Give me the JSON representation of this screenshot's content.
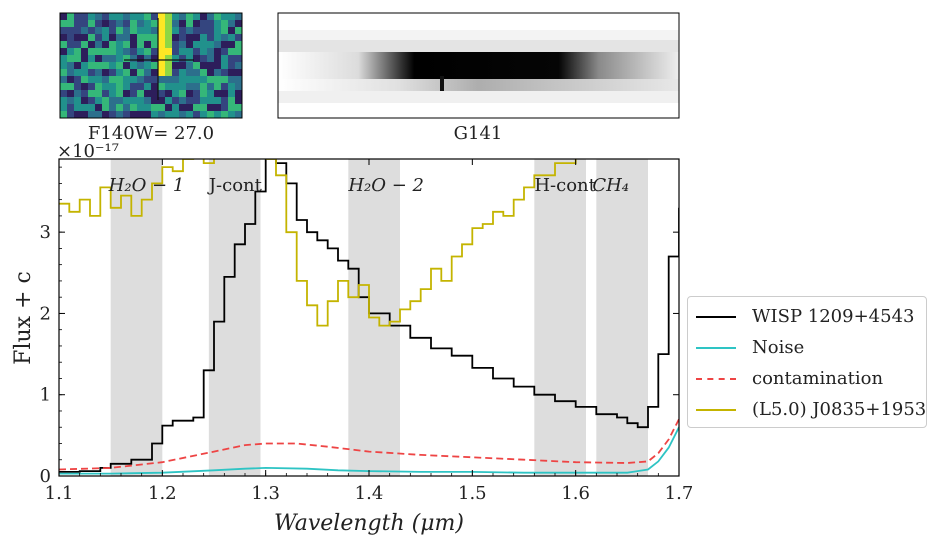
{
  "thumbnails": {
    "direct_label": "F140W= 27.0",
    "grism_label": "G141"
  },
  "chart_data": {
    "type": "line",
    "xlabel": "Wavelength (μm)",
    "ylabel": "Flux + c",
    "y_multiplier": "×10⁻¹⁷",
    "xlim": [
      1.1,
      1.7
    ],
    "ylim": [
      0,
      3.9
    ],
    "x_ticks": [
      "1.1",
      "1.2",
      "1.3",
      "1.4",
      "1.5",
      "1.6",
      "1.7"
    ],
    "y_ticks": [
      "0",
      "1",
      "2",
      "3"
    ],
    "bands": [
      {
        "label": "H₂O − 1",
        "x0": 1.15,
        "x1": 1.2
      },
      {
        "label": "J-cont",
        "x0": 1.245,
        "x1": 1.295
      },
      {
        "label": "H₂O − 2",
        "x0": 1.38,
        "x1": 1.43
      },
      {
        "label": "H-cont",
        "x0": 1.56,
        "x1": 1.61
      },
      {
        "label": "CH₄",
        "x0": 1.62,
        "x1": 1.67
      }
    ],
    "series": [
      {
        "name": "WISP 1209+4543",
        "color": "#000000",
        "style": "step",
        "x": [
          1.1,
          1.12,
          1.14,
          1.15,
          1.17,
          1.19,
          1.2,
          1.21,
          1.23,
          1.24,
          1.25,
          1.26,
          1.27,
          1.28,
          1.29,
          1.3,
          1.31,
          1.32,
          1.33,
          1.34,
          1.35,
          1.36,
          1.37,
          1.38,
          1.39,
          1.4,
          1.42,
          1.44,
          1.46,
          1.48,
          1.5,
          1.52,
          1.54,
          1.56,
          1.58,
          1.6,
          1.62,
          1.64,
          1.65,
          1.66,
          1.67,
          1.68,
          1.69,
          1.7
        ],
        "y": [
          0.05,
          0.06,
          0.1,
          0.15,
          0.2,
          0.4,
          0.62,
          0.68,
          0.72,
          1.3,
          1.9,
          2.45,
          2.85,
          3.1,
          3.5,
          3.92,
          3.85,
          3.6,
          3.15,
          3.0,
          2.9,
          2.8,
          2.65,
          2.55,
          2.2,
          2.0,
          1.85,
          1.7,
          1.57,
          1.48,
          1.33,
          1.2,
          1.1,
          1.0,
          0.92,
          0.85,
          0.76,
          0.72,
          0.65,
          0.6,
          0.85,
          1.5,
          2.7,
          3.3
        ]
      },
      {
        "name": "Noise",
        "color": "#2ec4c4",
        "style": "line",
        "x": [
          1.1,
          1.15,
          1.2,
          1.25,
          1.28,
          1.3,
          1.34,
          1.37,
          1.4,
          1.45,
          1.5,
          1.55,
          1.6,
          1.65,
          1.67,
          1.68,
          1.69,
          1.7
        ],
        "y": [
          0.03,
          0.03,
          0.04,
          0.07,
          0.09,
          0.1,
          0.09,
          0.07,
          0.06,
          0.05,
          0.05,
          0.04,
          0.04,
          0.04,
          0.08,
          0.18,
          0.35,
          0.6
        ]
      },
      {
        "name": "contamination",
        "color": "#ee4444",
        "style": "dashed",
        "x": [
          1.1,
          1.15,
          1.2,
          1.25,
          1.28,
          1.3,
          1.33,
          1.36,
          1.4,
          1.45,
          1.5,
          1.55,
          1.6,
          1.65,
          1.67,
          1.68,
          1.69,
          1.7
        ],
        "y": [
          0.08,
          0.1,
          0.17,
          0.3,
          0.38,
          0.4,
          0.4,
          0.36,
          0.3,
          0.26,
          0.23,
          0.2,
          0.17,
          0.16,
          0.18,
          0.28,
          0.45,
          0.7
        ]
      },
      {
        "name": "(L5.0) J0835+1953",
        "color": "#c4b400",
        "style": "step",
        "x": [
          1.1,
          1.11,
          1.12,
          1.13,
          1.14,
          1.15,
          1.16,
          1.17,
          1.18,
          1.19,
          1.2,
          1.21,
          1.22,
          1.23,
          1.24,
          1.25,
          1.26,
          1.27,
          1.28,
          1.29,
          1.3,
          1.31,
          1.32,
          1.33,
          1.34,
          1.35,
          1.36,
          1.37,
          1.38,
          1.39,
          1.4,
          1.41,
          1.42,
          1.43,
          1.44,
          1.45,
          1.46,
          1.47,
          1.48,
          1.49,
          1.5,
          1.51,
          1.52,
          1.53,
          1.54,
          1.55,
          1.56,
          1.58,
          1.6,
          1.62,
          1.64,
          1.66,
          1.68,
          1.7
        ],
        "y": [
          3.35,
          3.25,
          3.4,
          3.2,
          3.55,
          3.3,
          3.45,
          3.2,
          3.4,
          3.6,
          3.8,
          3.75,
          3.9,
          3.95,
          3.85,
          4.0,
          4.1,
          4.1,
          4.0,
          3.95,
          3.9,
          3.7,
          3.0,
          2.4,
          2.1,
          1.85,
          2.15,
          2.4,
          2.2,
          2.35,
          1.95,
          1.85,
          1.9,
          2.05,
          2.15,
          2.3,
          2.55,
          2.4,
          2.7,
          2.85,
          3.05,
          3.1,
          3.25,
          3.2,
          3.4,
          3.55,
          3.7,
          3.85,
          4.0,
          4.2,
          4.1,
          4.0,
          4.05,
          4.1
        ]
      }
    ],
    "legend": {
      "position": "right"
    },
    "grid": false
  }
}
